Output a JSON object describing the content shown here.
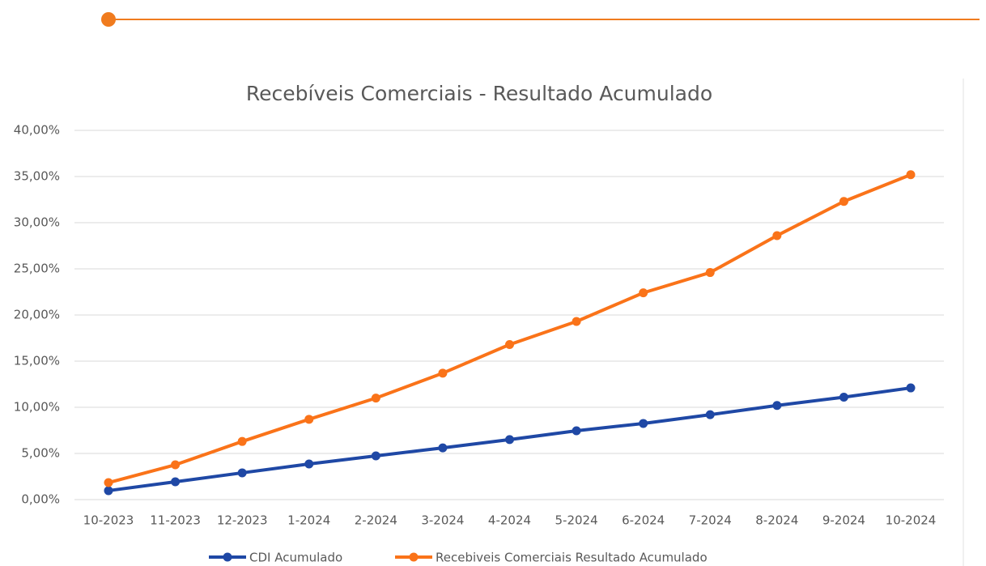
{
  "chart_data": {
    "type": "line",
    "title": "Recebíveis Comerciais - Resultado Acumulado",
    "categories": [
      "10-2023",
      "11-2023",
      "12-2023",
      "1-2024",
      "2-2024",
      "3-2024",
      "4-2024",
      "5-2024",
      "6-2024",
      "7-2024",
      "8-2024",
      "9-2024",
      "10-2024"
    ],
    "series": [
      {
        "name": "CDI Acumulado",
        "color": "#1f48a5",
        "values": [
          0.97,
          1.93,
          2.9,
          3.86,
          4.74,
          5.6,
          6.5,
          7.46,
          8.25,
          9.2,
          10.2,
          11.1,
          12.1
        ]
      },
      {
        "name": "Recebiveis Comerciais Resultado Acumulado",
        "color": "#fa7319",
        "values": [
          1.84,
          3.77,
          6.3,
          8.7,
          11.0,
          13.7,
          16.8,
          19.3,
          22.4,
          24.6,
          28.6,
          32.3,
          35.2
        ]
      }
    ],
    "ylim": [
      0,
      40
    ],
    "yticks": [
      {
        "value": 0,
        "label": "0,00%"
      },
      {
        "value": 5,
        "label": "5,00%"
      },
      {
        "value": 10,
        "label": "10,00%"
      },
      {
        "value": 15,
        "label": "15,00%"
      },
      {
        "value": 20,
        "label": "20,00%"
      },
      {
        "value": 25,
        "label": "25,00%"
      },
      {
        "value": 30,
        "label": "30,00%"
      },
      {
        "value": 35,
        "label": "35,00%"
      },
      {
        "value": 40,
        "label": "40,00%"
      }
    ],
    "grid": true,
    "legend": "bottom"
  }
}
